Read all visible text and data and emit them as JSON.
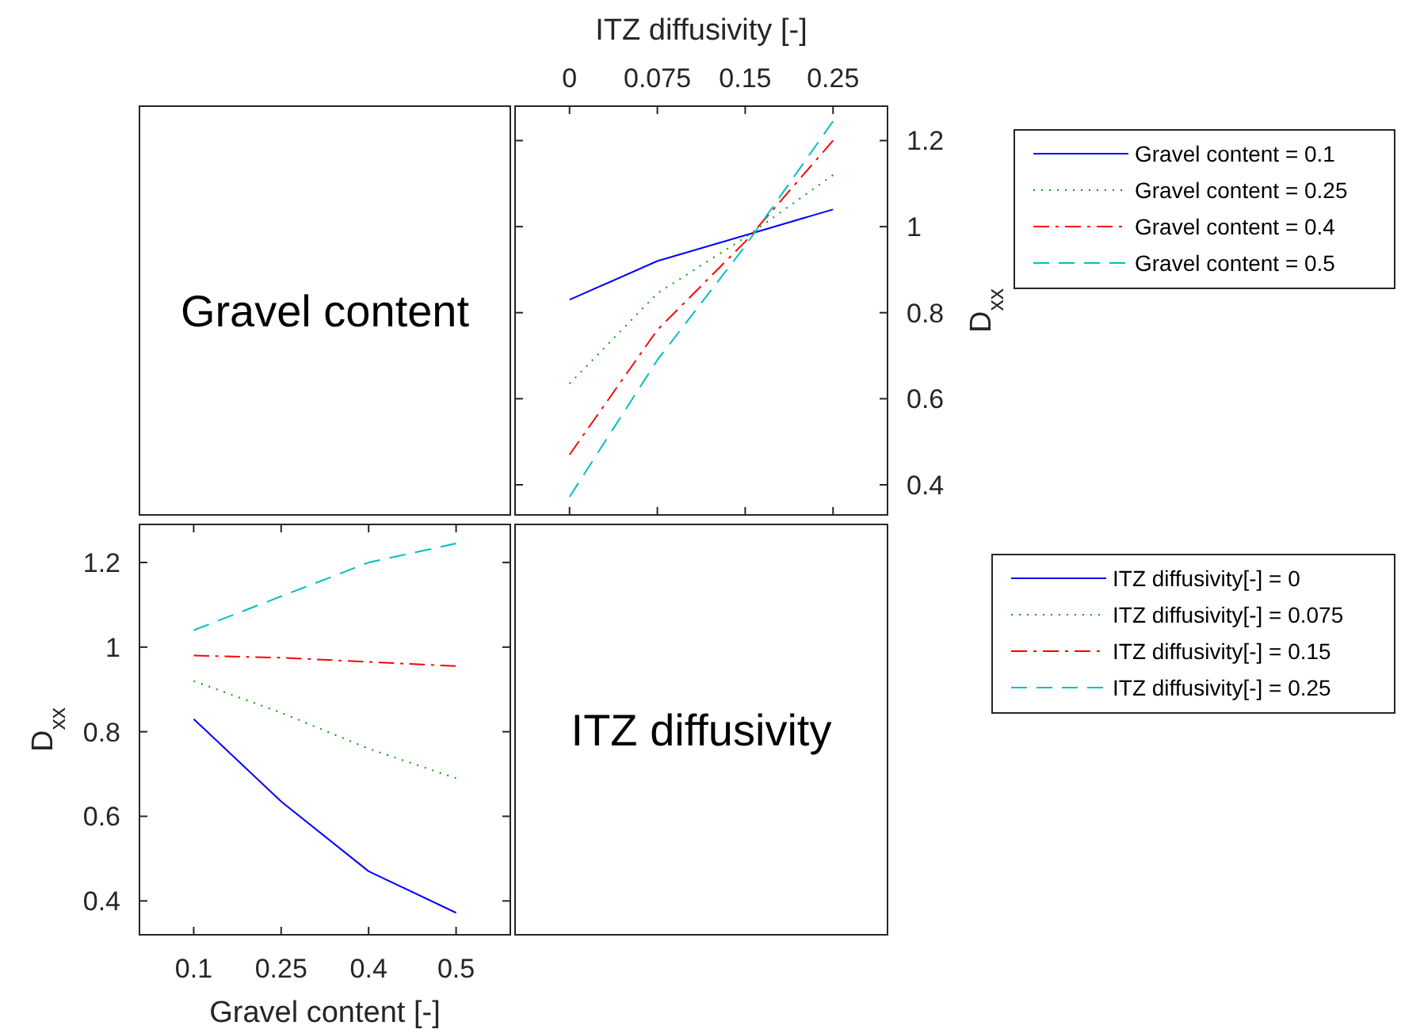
{
  "chart_data": [
    {
      "type": "other",
      "annotations": [
        "Gravel content"
      ]
    },
    {
      "type": "line",
      "xlabel": "ITZ diffusivity [-]",
      "ylabel": "D$_{xx}$",
      "categories": [
        "0",
        "0.075",
        "0.15",
        "0.25"
      ],
      "ylim": [
        0.33,
        1.28
      ],
      "yticks": [
        0.4,
        0.6,
        0.8,
        1,
        1.2
      ],
      "legend": "right",
      "series": [
        {
          "name": "Gravel content = 0.1",
          "color": "#0000ff",
          "line_style": "solid",
          "values": [
            0.83,
            0.92,
            0.98,
            1.04
          ]
        },
        {
          "name": "Gravel content = 0.25",
          "color": "#00a000",
          "line_style": "dotted",
          "values": [
            0.635,
            0.845,
            0.975,
            1.12
          ]
        },
        {
          "name": "Gravel content = 0.4",
          "color": "#ff0000",
          "line_style": "dashdot",
          "values": [
            0.47,
            0.76,
            0.965,
            1.2
          ]
        },
        {
          "name": "Gravel content = 0.5",
          "color": "#00bfbf",
          "line_style": "dashed",
          "values": [
            0.372,
            0.69,
            0.955,
            1.245
          ]
        }
      ]
    },
    {
      "type": "line",
      "xlabel": "Gravel content [-]",
      "ylabel": "D$_{xx}$",
      "categories": [
        "0.1",
        "0.25",
        "0.4",
        "0.5"
      ],
      "ylim": [
        0.32,
        1.29
      ],
      "yticks": [
        0.4,
        0.6,
        0.8,
        1,
        1.2
      ],
      "legend": "right",
      "series": [
        {
          "name": "ITZ diffusivity[-] = 0",
          "color": "#0000ff",
          "line_style": "solid",
          "values": [
            0.83,
            0.635,
            0.47,
            0.372
          ]
        },
        {
          "name": "ITZ diffusivity[-] = 0.075",
          "color": "#00a000",
          "line_style": "dotted",
          "values": [
            0.92,
            0.845,
            0.76,
            0.69
          ]
        },
        {
          "name": "ITZ diffusivity[-] = 0.15",
          "color": "#ff0000",
          "line_style": "dashdot",
          "values": [
            0.98,
            0.975,
            0.965,
            0.955
          ]
        },
        {
          "name": "ITZ diffusivity[-] = 0.25",
          "color": "#00bfbf",
          "line_style": "dashed",
          "values": [
            1.04,
            1.12,
            1.2,
            1.245
          ]
        }
      ]
    },
    {
      "type": "other",
      "annotations": [
        "ITZ diffusivity"
      ]
    }
  ]
}
